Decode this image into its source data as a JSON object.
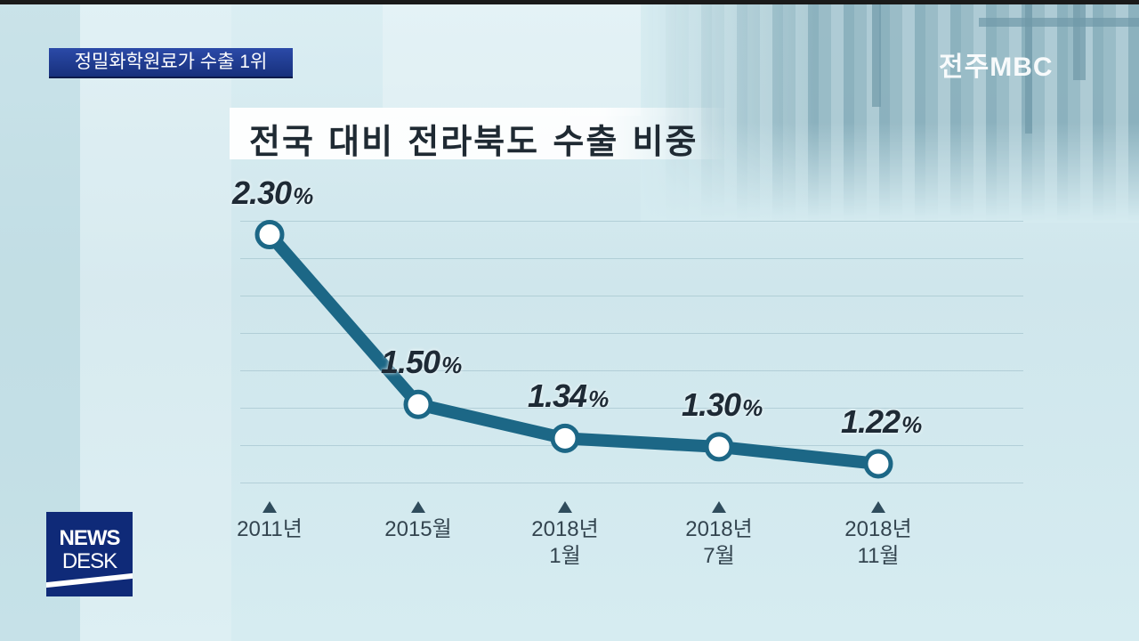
{
  "topic_banner": "정밀화학원료가 수출 1위",
  "station_logo": "전주MBC",
  "newsdesk": {
    "line1": "NEWS",
    "line2": "DESK"
  },
  "chart_data": {
    "type": "line",
    "title": "전국 대비 전라북도 수출 비중",
    "categories": [
      "2011년",
      "2015월",
      "2018년\n1월",
      "2018년\n7월",
      "2018년\n11월"
    ],
    "values": [
      2.3,
      1.5,
      1.34,
      1.3,
      1.22
    ],
    "value_labels": [
      "2.30",
      "1.50",
      "1.34",
      "1.30",
      "1.22"
    ],
    "unit": "%",
    "ylim": [
      0,
      2.5
    ],
    "grid": true,
    "colors": {
      "line": "#1c6786",
      "marker_fill": "#ffffff",
      "marker_stroke": "#1c6786"
    }
  }
}
